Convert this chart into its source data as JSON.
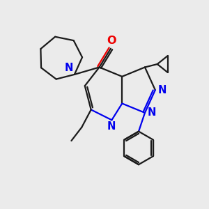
{
  "bg_color": "#ebebeb",
  "bond_color": "#1a1a1a",
  "N_color": "#0000ee",
  "O_color": "#ee0000",
  "line_width": 1.6,
  "font_size": 10.5,
  "xlim": [
    0,
    10
  ],
  "ylim": [
    0,
    10
  ]
}
